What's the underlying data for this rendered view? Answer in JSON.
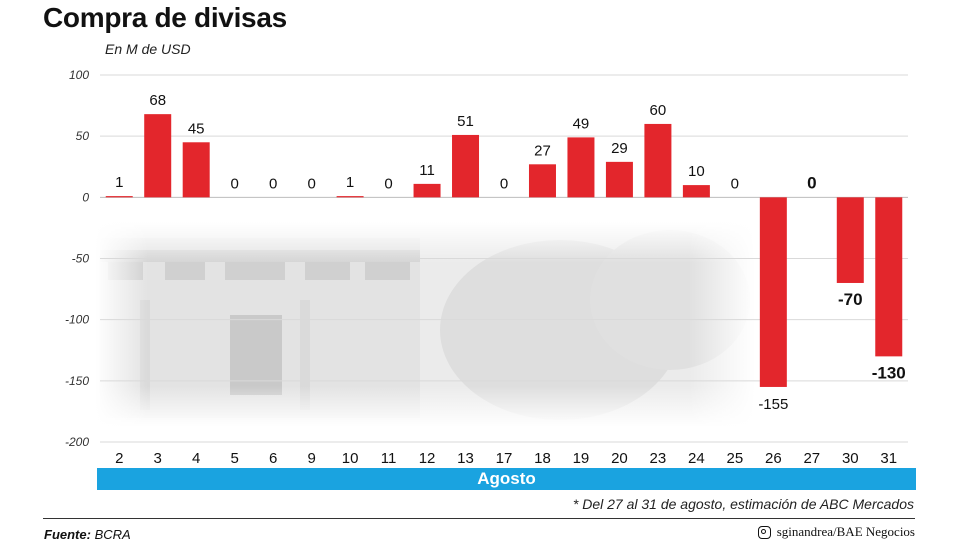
{
  "header": {
    "title": "Compra de divisas",
    "subtitle": "En M de USD"
  },
  "axis_band": {
    "label": "Agosto",
    "color": "#1aa3e0"
  },
  "footnote": "* Del 27 al 31 de agosto, estimación de ABC Mercados",
  "source": {
    "label": "Fuente:",
    "value": "BCRA"
  },
  "credit": {
    "handle": "sginandrea/BAE Negocios",
    "icon": "instagram-icon"
  },
  "colors": {
    "bar": "#e3262c",
    "gridline": "#d9d9d9",
    "text": "#111111"
  },
  "chart_data": {
    "type": "bar",
    "title": "Compra de divisas",
    "ylabel": "En M de USD",
    "xlabel": "Agosto",
    "ylim": [
      -200,
      100
    ],
    "yticks": [
      100,
      50,
      0,
      -50,
      -100,
      -150,
      -200
    ],
    "grid": true,
    "categories": [
      "2",
      "3",
      "4",
      "5",
      "6",
      "9",
      "10",
      "11",
      "12",
      "13",
      "17",
      "18",
      "19",
      "20",
      "23",
      "24",
      "25",
      "26",
      "27",
      "30",
      "31"
    ],
    "values": [
      1,
      68,
      45,
      0,
      0,
      0,
      1,
      0,
      11,
      51,
      0,
      27,
      49,
      29,
      60,
      10,
      0,
      -155,
      0,
      -70,
      -130
    ],
    "data_labels": [
      "1",
      "68",
      "45",
      "0",
      "0",
      "0",
      "1",
      "0",
      "11",
      "51",
      "0",
      "27",
      "49",
      "29",
      "60",
      "10",
      "0",
      "-155",
      "0",
      "-70",
      "-130"
    ],
    "bold_labels": [
      false,
      false,
      false,
      false,
      false,
      false,
      false,
      false,
      false,
      false,
      false,
      false,
      false,
      false,
      false,
      false,
      false,
      false,
      true,
      true,
      true
    ]
  }
}
